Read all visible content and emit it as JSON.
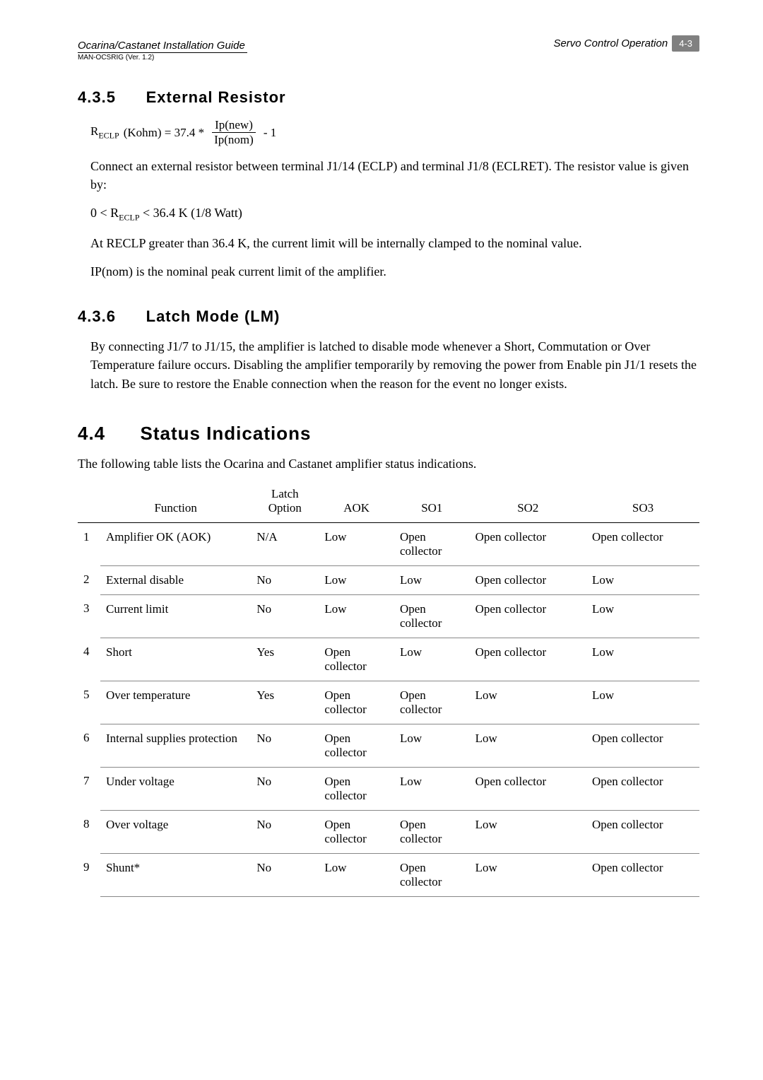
{
  "header": {
    "doc_title": "Ocarina/Castanet Installation Guide",
    "doc_code": "MAN-OCSRIG (Ver. 1.2)",
    "section_title": "Servo Control Operation",
    "page_number": "4-3"
  },
  "sections": {
    "s435": {
      "number": "4.3.5",
      "title": "External Resistor",
      "formula_prefix": "R",
      "formula_sub": "ECLP",
      "formula_mid": " (Kohm) = 37.4 * ",
      "frac_num": "Ip(new)",
      "frac_den": "Ip(nom)",
      "formula_suffix": "  - 1",
      "p1": "Connect an external resistor between terminal J1/14 (ECLP) and terminal J1/8 (ECLRET). The resistor value is given by:",
      "p2_pre": "0 < R",
      "p2_sub": "ECLP",
      "p2_post": "  < 36.4 K (1/8 Watt)",
      "p3": "At RECLP greater than 36.4 K, the current limit will be internally clamped to the nominal value.",
      "p4": "IP(nom) is the nominal peak current limit of the amplifier."
    },
    "s436": {
      "number": "4.3.6",
      "title": "Latch Mode (LM)",
      "p1": "By connecting J1/7 to J1/15, the amplifier is latched to disable mode whenever a Short, Commutation or Over Temperature failure occurs. Disabling the amplifier temporarily by removing the power from Enable pin J1/1 resets the latch.    Be sure to restore the Enable connection when the reason for the event no longer exists."
    },
    "s44": {
      "number": "4.4",
      "title": "Status Indications",
      "intro": "The following table lists the Ocarina and Castanet amplifier status indications."
    }
  },
  "table": {
    "headers": {
      "blank": "",
      "function": "Function",
      "latch": "Latch Option",
      "aok": "AOK",
      "so1": "SO1",
      "so2": "SO2",
      "so3": "SO3"
    },
    "rows": [
      {
        "n": "1",
        "func": "Amplifier OK (AOK)",
        "latch": "N/A",
        "aok": "Low",
        "so1": "Open collector",
        "so2": "Open collector",
        "so3": "Open collector"
      },
      {
        "n": "2",
        "func": "External disable",
        "latch": "No",
        "aok": "Low",
        "so1": "Low",
        "so2": "Open collector",
        "so3": "Low"
      },
      {
        "n": "3",
        "func": "Current limit",
        "latch": "No",
        "aok": "Low",
        "so1": "Open collector",
        "so2": "Open collector",
        "so3": "Low"
      },
      {
        "n": "4",
        "func": "Short",
        "latch": "Yes",
        "aok": "Open collector",
        "so1": "Low",
        "so2": "Open collector",
        "so3": "Low"
      },
      {
        "n": "5",
        "func": "Over temperature",
        "latch": "Yes",
        "aok": "Open collector",
        "so1": "Open collector",
        "so2": "Low",
        "so3": "Low"
      },
      {
        "n": "6",
        "func": "Internal supplies protection",
        "latch": "No",
        "aok": "Open collector",
        "so1": "Low",
        "so2": "Low",
        "so3": "Open collector"
      },
      {
        "n": "7",
        "func": "Under voltage",
        "latch": "No",
        "aok": "Open collector",
        "so1": "Low",
        "so2": "Open collector",
        "so3": "Open collector"
      },
      {
        "n": "8",
        "func": "Over voltage",
        "latch": "No",
        "aok": "Open collector",
        "so1": "Open collector",
        "so2": "Low",
        "so3": "Open collector"
      },
      {
        "n": "9",
        "func": "Shunt*",
        "latch": "No",
        "aok": "Low",
        "so1": "Open collector",
        "so2": "Low",
        "so3": "Open collector"
      }
    ]
  }
}
